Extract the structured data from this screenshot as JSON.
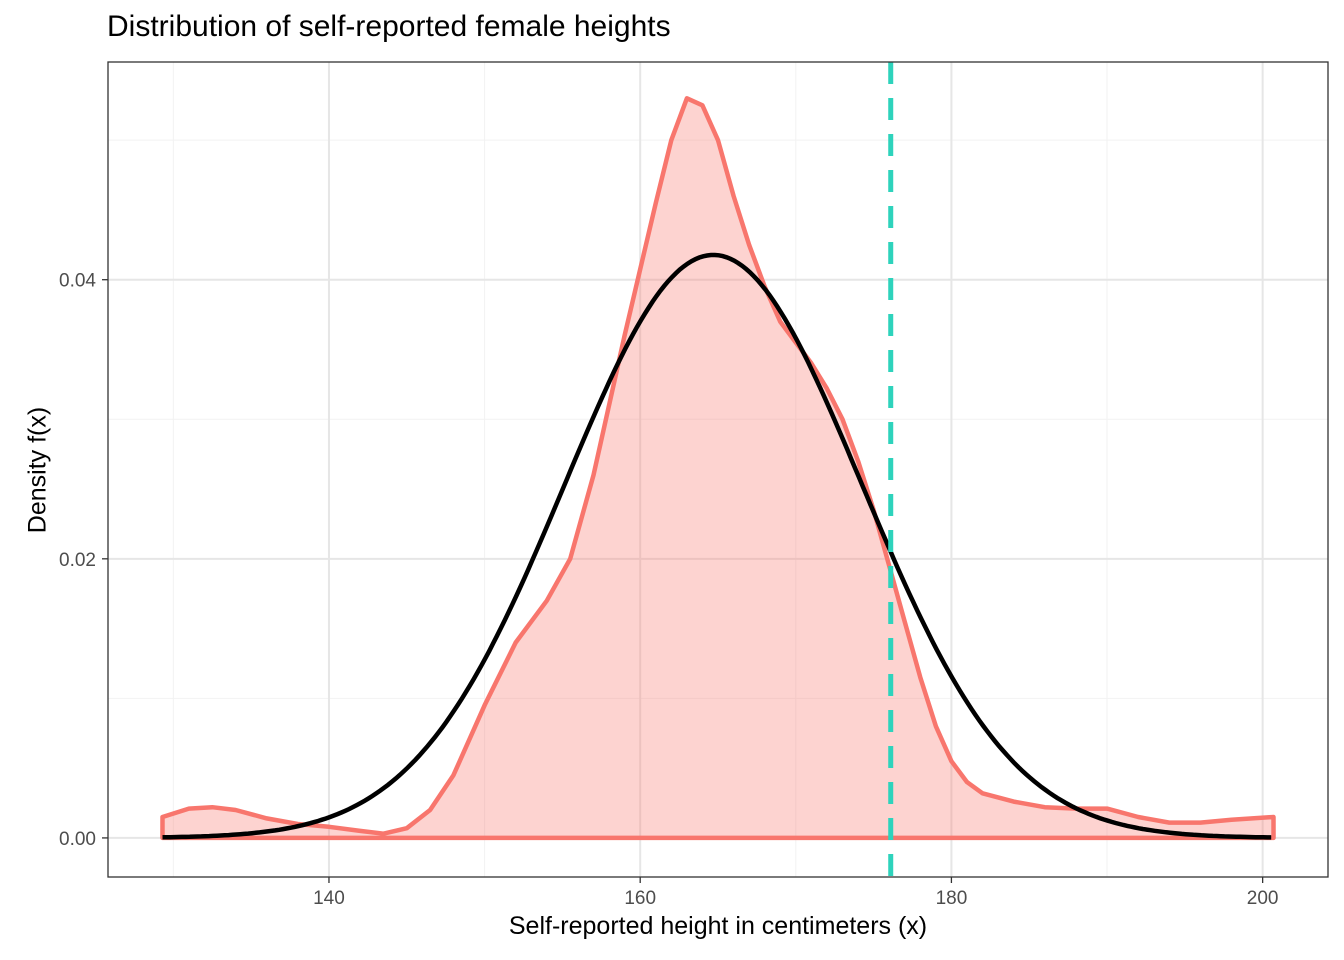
{
  "chart_data": {
    "type": "area",
    "title": "Distribution of self-reported female heights",
    "xlabel": "Self-reported height in centimeters (x)",
    "ylabel": "Density f(x)",
    "xlim": [
      125.8,
      204.2
    ],
    "ylim": [
      -0.0028,
      0.0556
    ],
    "x_ticks": [
      140,
      160,
      180,
      200
    ],
    "x_tick_labels": [
      "140",
      "160",
      "180",
      "200"
    ],
    "y_ticks": [
      0,
      0.02,
      0.04
    ],
    "y_tick_labels": [
      "0.00",
      "0.02",
      "0.04"
    ],
    "grid": true,
    "legend": "none",
    "colors": {
      "density": "#F8766D",
      "density_fill": "#F8766D",
      "normal": "#000000",
      "reference": "#2ED3BC"
    },
    "series": [
      {
        "type": "density",
        "x": [
          129.3,
          131,
          132.5,
          134,
          136,
          138,
          140,
          142,
          143.5,
          145,
          146.5,
          148,
          150,
          152,
          154,
          155.5,
          157,
          159,
          161,
          162,
          163,
          164,
          165,
          166,
          167,
          168,
          169,
          170,
          171,
          172,
          173,
          174,
          175,
          176,
          177,
          178,
          179,
          180,
          181,
          182,
          184,
          186,
          188,
          190,
          192,
          194,
          196,
          198,
          200.7
        ],
        "y": [
          0.0015,
          0.0021,
          0.0022,
          0.002,
          0.0014,
          0.001,
          0.0008,
          0.0005,
          0.0003,
          0.0007,
          0.002,
          0.0045,
          0.0095,
          0.014,
          0.017,
          0.02,
          0.026,
          0.036,
          0.0455,
          0.05,
          0.053,
          0.0525,
          0.05,
          0.046,
          0.0425,
          0.0395,
          0.037,
          0.0355,
          0.034,
          0.0322,
          0.03,
          0.027,
          0.0235,
          0.0195,
          0.0155,
          0.0115,
          0.008,
          0.0055,
          0.004,
          0.0032,
          0.0026,
          0.0022,
          0.0021,
          0.0021,
          0.0015,
          0.0011,
          0.0011,
          0.0013,
          0.0015
        ]
      },
      {
        "type": "normal",
        "mean": 164.7,
        "sd": 9.55,
        "x_range": [
          129.3,
          200.7
        ]
      }
    ],
    "vline": {
      "x": 176.1,
      "style": "dashed"
    }
  }
}
